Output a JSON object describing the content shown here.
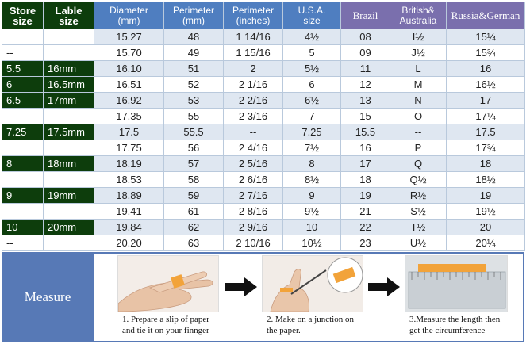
{
  "headers": {
    "store_size": [
      "Store",
      "size"
    ],
    "lable_size": [
      "Lable",
      "size"
    ],
    "diameter": [
      "Diameter",
      "(mm)"
    ],
    "perimeter_mm": [
      "Perimeter",
      "(mm)"
    ],
    "perimeter_in": [
      "Perimeter",
      "(inches)"
    ],
    "usa": [
      "U.S.A.",
      "size"
    ],
    "brazil": "Brazil",
    "british": [
      "British&",
      "Australia"
    ],
    "russia": "Russia&German"
  },
  "rows": [
    {
      "store": "",
      "lable": "",
      "dia": "15.27",
      "per": "48",
      "inch": "1 14/16",
      "usa": "4½",
      "br": "08",
      "uk": "I½",
      "ru": "15¼",
      "dark": false
    },
    {
      "store": "--",
      "lable": "",
      "dia": "15.70",
      "per": "49",
      "inch": "1 15/16",
      "usa": "5",
      "br": "09",
      "uk": "J½",
      "ru": "15¾",
      "dark": false
    },
    {
      "store": "5.5",
      "lable": "16mm",
      "dia": "16.10",
      "per": "51",
      "inch": "2",
      "usa": "5½",
      "br": "11",
      "uk": "L",
      "ru": "16",
      "dark": true
    },
    {
      "store": "6",
      "lable": "16.5mm",
      "dia": "16.51",
      "per": "52",
      "inch": "2 1/16",
      "usa": "6",
      "br": "12",
      "uk": "M",
      "ru": "16½",
      "dark": true
    },
    {
      "store": "6.5",
      "lable": "17mm",
      "dia": "16.92",
      "per": "53",
      "inch": "2 2/16",
      "usa": "6½",
      "br": "13",
      "uk": "N",
      "ru": "17",
      "dark": true
    },
    {
      "store": "",
      "lable": "",
      "dia": "17.35",
      "per": "55",
      "inch": "2 3/16",
      "usa": "7",
      "br": "15",
      "uk": "O",
      "ru": "17¼",
      "dark": false
    },
    {
      "store": "7.25",
      "lable": "17.5mm",
      "dia": "17.5",
      "per": "55.5",
      "inch": "--",
      "usa": "7.25",
      "br": "15.5",
      "uk": "--",
      "ru": "17.5",
      "dark": true
    },
    {
      "store": "",
      "lable": "",
      "dia": "17.75",
      "per": "56",
      "inch": "2 4/16",
      "usa": "7½",
      "br": "16",
      "uk": "P",
      "ru": "17¾",
      "dark": false
    },
    {
      "store": "8",
      "lable": "18mm",
      "dia": "18.19",
      "per": "57",
      "inch": "2 5/16",
      "usa": "8",
      "br": "17",
      "uk": "Q",
      "ru": "18",
      "dark": true
    },
    {
      "store": "",
      "lable": "",
      "dia": "18.53",
      "per": "58",
      "inch": "2 6/16",
      "usa": "8½",
      "br": "18",
      "uk": "Q½",
      "ru": "18½",
      "dark": false
    },
    {
      "store": "9",
      "lable": "19mm",
      "dia": "18.89",
      "per": "59",
      "inch": "2 7/16",
      "usa": "9",
      "br": "19",
      "uk": "R½",
      "ru": "19",
      "dark": true
    },
    {
      "store": "",
      "lable": "",
      "dia": "19.41",
      "per": "61",
      "inch": "2 8/16",
      "usa": "9½",
      "br": "21",
      "uk": "S½",
      "ru": "19½",
      "dark": false
    },
    {
      "store": "10",
      "lable": "20mm",
      "dia": "19.84",
      "per": "62",
      "inch": "2 9/16",
      "usa": "10",
      "br": "22",
      "uk": "T½",
      "ru": "20",
      "dark": true
    },
    {
      "store": "--",
      "lable": "",
      "dia": "20.20",
      "per": "63",
      "inch": "2 10/16",
      "usa": "10½",
      "br": "23",
      "uk": "U½",
      "ru": "20¼",
      "dark": false
    }
  ],
  "measure": {
    "label": "Measure",
    "steps": [
      {
        "line1": "1. Prepare a slip of paper",
        "line2": "and tie it on your finnger"
      },
      {
        "line1": "2. Make on a junction on",
        "line2": "the paper."
      },
      {
        "line1": "3.Measure the length then",
        "line2": "get the circumference"
      }
    ]
  },
  "colors": {
    "dark_green": "#0d3d0c",
    "header_blue": "#4f7ec0",
    "header_purple": "#7a6fad",
    "row_stripe": "#dfe7f1",
    "measure_bg": "#5779b6"
  }
}
